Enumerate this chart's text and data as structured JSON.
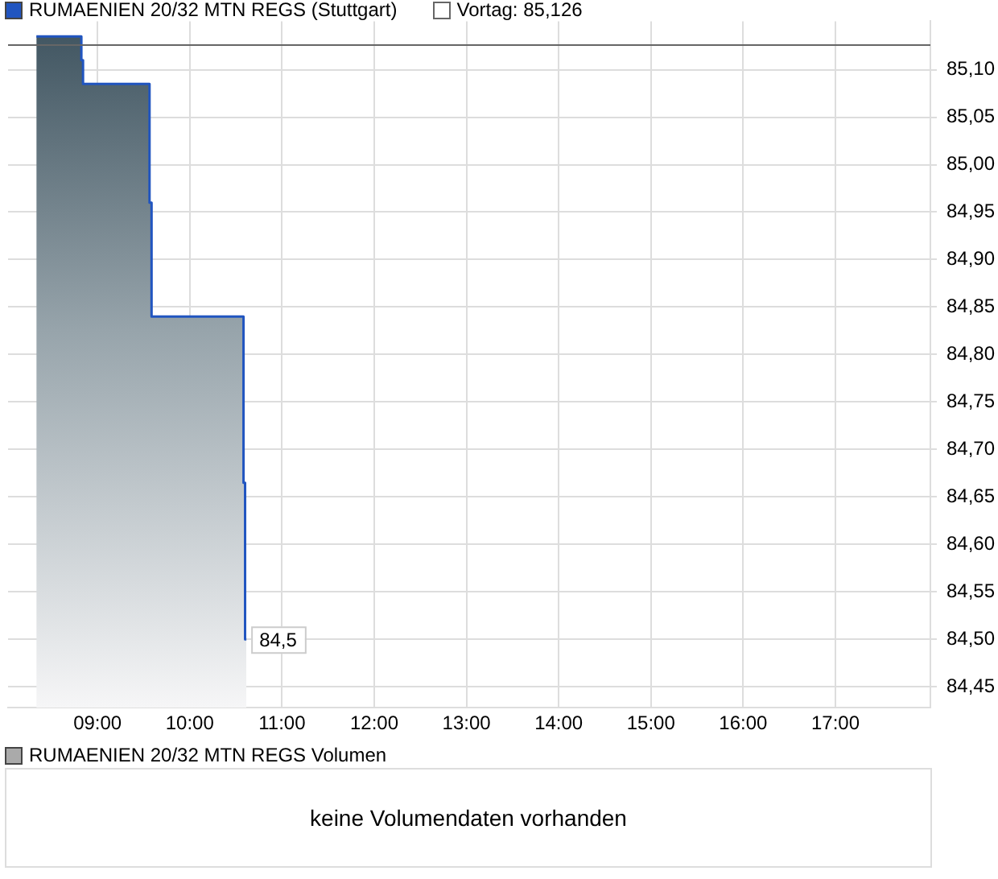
{
  "chart_data": [
    {
      "type": "area",
      "legend": "top left",
      "grid": true,
      "marker": "none",
      "x": [
        8.337,
        8.825,
        8.825,
        8.843,
        8.843,
        9.564,
        9.564,
        9.586,
        9.586,
        10.583,
        10.583,
        10.6,
        10.6,
        10.614
      ],
      "series": [
        {
          "name": "RUMAENIEN 20/32 MTN REGS (Stuttgart)",
          "color": "#2155c0",
          "values": [
            85.135,
            85.135,
            85.11,
            85.11,
            85.085,
            85.085,
            84.96,
            84.96,
            84.84,
            84.84,
            84.665,
            84.665,
            84.5,
            84.5
          ]
        }
      ],
      "xlim": [
        8.03,
        18.03
      ],
      "xticks": [
        {
          "value": 9,
          "label": "09:00"
        },
        {
          "value": 10,
          "label": "10:00"
        },
        {
          "value": 11,
          "label": "11:00"
        },
        {
          "value": 12,
          "label": "12:00"
        },
        {
          "value": 13,
          "label": "13:00"
        },
        {
          "value": 14,
          "label": "14:00"
        },
        {
          "value": 15,
          "label": "15:00"
        },
        {
          "value": 16,
          "label": "16:00"
        },
        {
          "value": 17,
          "label": "17:00"
        }
      ],
      "ylim": [
        84.428,
        85.151
      ],
      "yticks": [
        {
          "value": 84.45,
          "label": "84,45"
        },
        {
          "value": 84.5,
          "label": "84,50"
        },
        {
          "value": 84.55,
          "label": "84,55"
        },
        {
          "value": 84.6,
          "label": "84,60"
        },
        {
          "value": 84.65,
          "label": "84,65"
        },
        {
          "value": 84.7,
          "label": "84,70"
        },
        {
          "value": 84.75,
          "label": "84,75"
        },
        {
          "value": 84.8,
          "label": "84,80"
        },
        {
          "value": 84.85,
          "label": "84,85"
        },
        {
          "value": 84.9,
          "label": "84,90"
        },
        {
          "value": 84.95,
          "label": "84,95"
        },
        {
          "value": 85.0,
          "label": "85,00"
        },
        {
          "value": 85.05,
          "label": "85,05"
        },
        {
          "value": 85.1,
          "label": "85,10"
        }
      ],
      "ref_lines": [
        {
          "axis": "y",
          "value": 85.126,
          "label": "Vortag: 85,126",
          "color": "#666666"
        }
      ],
      "annotations": [
        {
          "text": "84,5",
          "x": 10.614,
          "y": 84.5
        }
      ]
    },
    {
      "type": "other",
      "title": "RUMAENIEN 20/32 MTN REGS Volumen",
      "annotations": [
        "keine Volumendaten vorhanden"
      ]
    }
  ]
}
